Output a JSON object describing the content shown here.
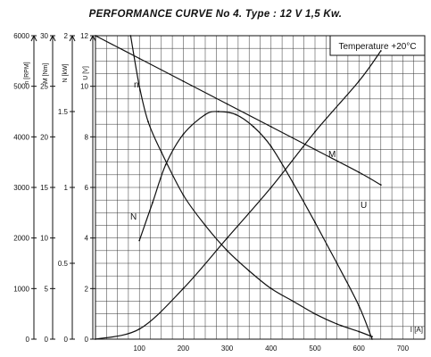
{
  "chart_data": {
    "type": "line",
    "title": "PERFORMANCE CURVE No 4.  Type : 12 V  1,5 Kw.",
    "annotation": "Temperature  +20°C",
    "xlabel": "I [A]",
    "xlim": [
      0,
      750
    ],
    "x_ticks": [
      "100",
      "200",
      "300",
      "400",
      "500",
      "600",
      "700"
    ],
    "grid": true,
    "y_axes": [
      {
        "label": "n [RPM]",
        "lim": [
          0,
          6000
        ],
        "ticks": [
          "0",
          "1000",
          "2000",
          "3000",
          "4000",
          "5000",
          "6000"
        ]
      },
      {
        "label": "M [Nm]",
        "lim": [
          0,
          30
        ],
        "ticks": [
          "0",
          "5",
          "10",
          "15",
          "20",
          "25",
          "30"
        ]
      },
      {
        "label": "N [kW]",
        "lim": [
          0,
          2
        ],
        "ticks": [
          "0",
          "0.5",
          "1",
          "1.5",
          "2"
        ]
      },
      {
        "label": "U [V]",
        "lim": [
          0,
          12
        ],
        "ticks": [
          "0",
          "2",
          "4",
          "6",
          "8",
          "10",
          "12"
        ]
      }
    ],
    "series": [
      {
        "name": "n",
        "axis": 0,
        "points": [
          [
            80,
            6000
          ],
          [
            100,
            5000
          ],
          [
            120,
            4300
          ],
          [
            150,
            3700
          ],
          [
            200,
            2850
          ],
          [
            250,
            2250
          ],
          [
            300,
            1750
          ],
          [
            350,
            1350
          ],
          [
            400,
            1000
          ],
          [
            450,
            750
          ],
          [
            500,
            500
          ],
          [
            550,
            300
          ],
          [
            600,
            150
          ],
          [
            630,
            50
          ]
        ]
      },
      {
        "name": "M",
        "axis": 1,
        "points": [
          [
            0,
            0
          ],
          [
            100,
            1
          ],
          [
            200,
            5
          ],
          [
            300,
            10
          ],
          [
            400,
            15
          ],
          [
            500,
            20.5
          ],
          [
            600,
            25.5
          ],
          [
            650,
            28.5
          ]
        ]
      },
      {
        "name": "N",
        "axis": 2,
        "points": [
          [
            100,
            0.65
          ],
          [
            130,
            0.9
          ],
          [
            160,
            1.15
          ],
          [
            200,
            1.35
          ],
          [
            250,
            1.48
          ],
          [
            280,
            1.5
          ],
          [
            320,
            1.48
          ],
          [
            360,
            1.4
          ],
          [
            400,
            1.27
          ],
          [
            450,
            1.03
          ],
          [
            500,
            0.77
          ],
          [
            550,
            0.5
          ],
          [
            600,
            0.22
          ],
          [
            630,
            0
          ]
        ]
      },
      {
        "name": "U",
        "axis": 3,
        "points": [
          [
            0,
            12
          ],
          [
            100,
            11.1
          ],
          [
            200,
            10.2
          ],
          [
            300,
            9.3
          ],
          [
            400,
            8.4
          ],
          [
            500,
            7.5
          ],
          [
            600,
            6.6
          ],
          [
            650,
            6.1
          ]
        ]
      }
    ]
  }
}
